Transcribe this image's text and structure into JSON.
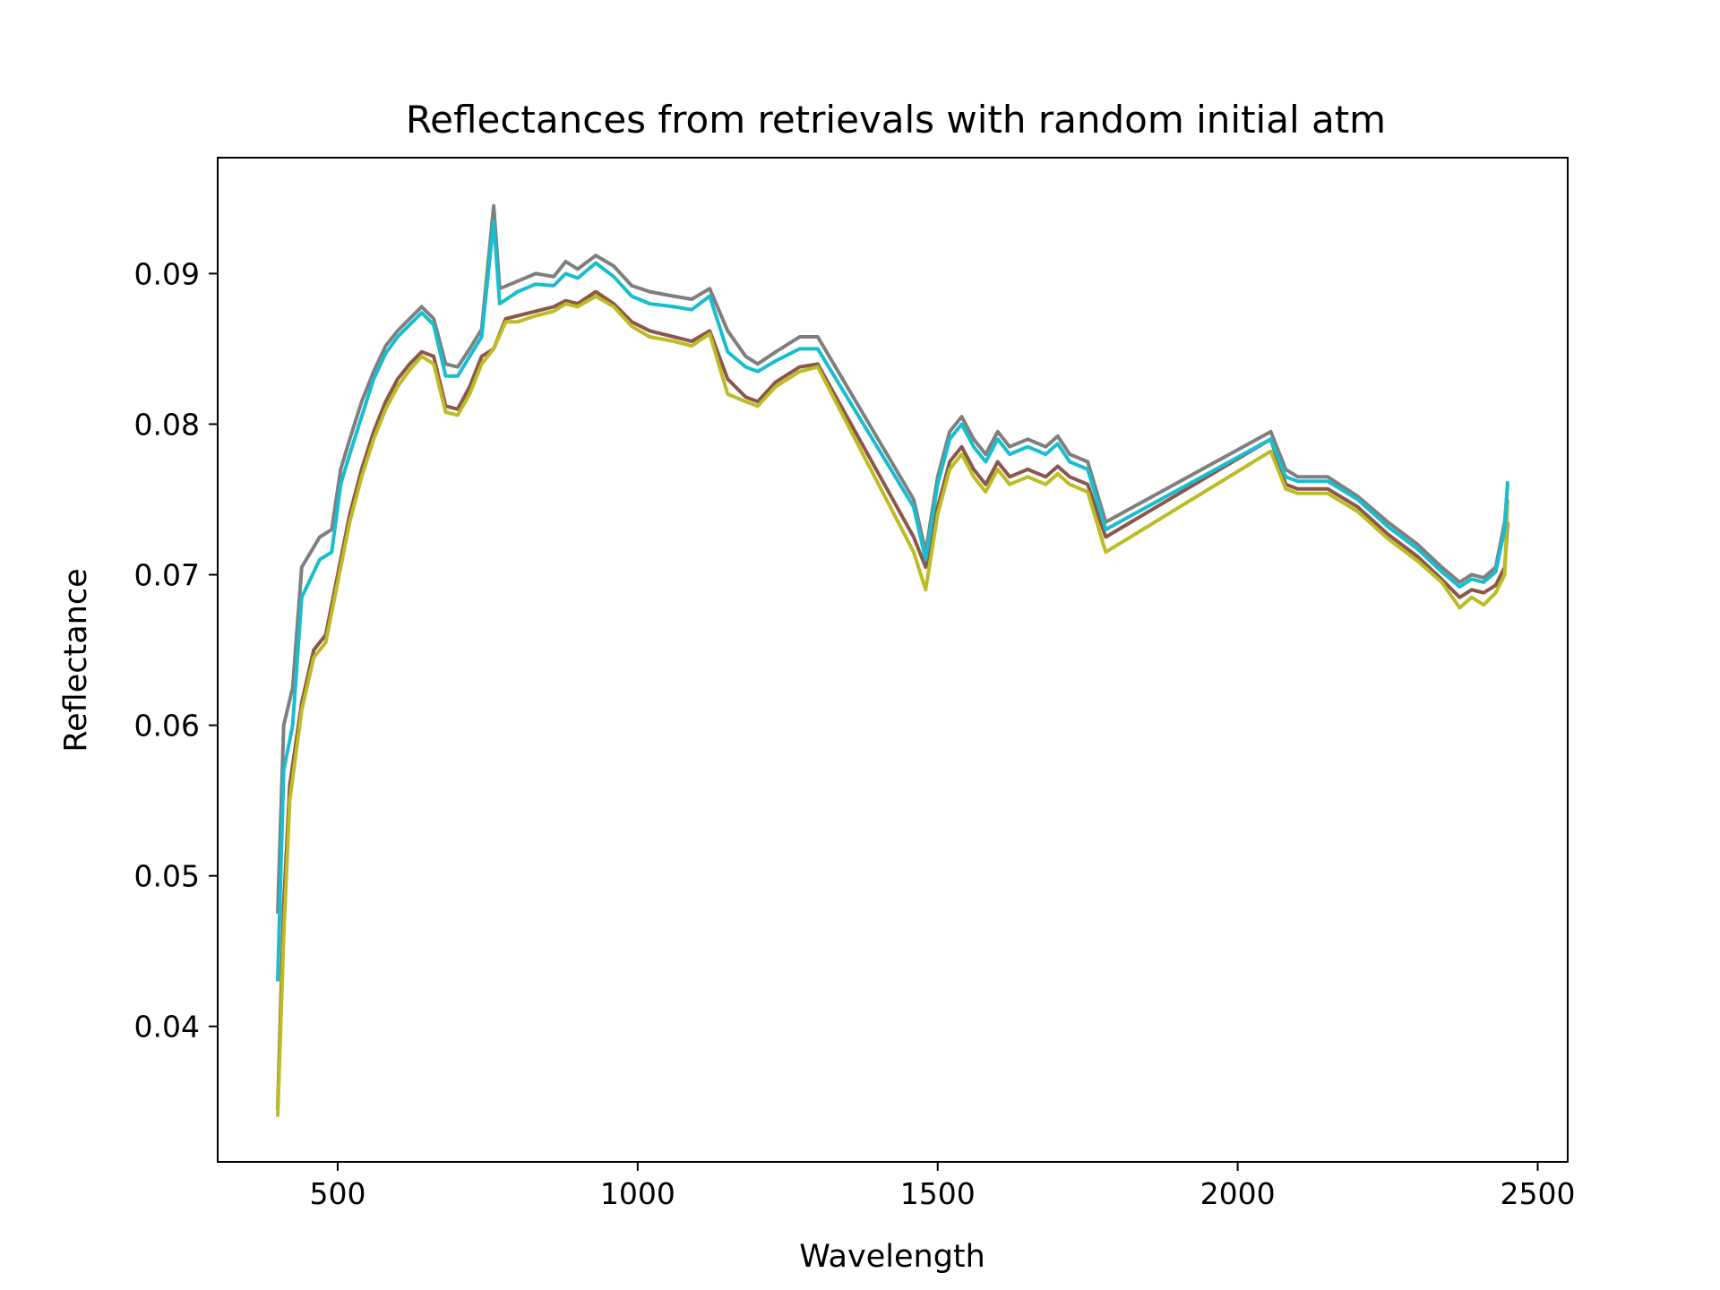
{
  "chart_data": {
    "type": "line",
    "title": "Reflectances from retrievals with random initial atm",
    "xlabel": "Wavelength",
    "ylabel": "Reflectance",
    "xlim": [
      300,
      2550
    ],
    "ylim": [
      0.031,
      0.0977
    ],
    "xticks": [
      500,
      1000,
      1500,
      2000,
      2500
    ],
    "yticks": [
      0.04,
      0.05,
      0.06,
      0.07,
      0.08,
      0.09
    ],
    "ytick_labels": [
      "0.04",
      "0.05",
      "0.06",
      "0.07",
      "0.08",
      "0.09"
    ],
    "grid": false,
    "legend": "none",
    "series": [
      {
        "color": "#7f7f7f",
        "points": [
          [
            400,
            0.0475
          ],
          [
            410,
            0.06
          ],
          [
            425,
            0.0625
          ],
          [
            440,
            0.0705
          ],
          [
            470,
            0.0725
          ],
          [
            490,
            0.073
          ],
          [
            505,
            0.077
          ],
          [
            520,
            0.079
          ],
          [
            540,
            0.0815
          ],
          [
            560,
            0.0835
          ],
          [
            580,
            0.0852
          ],
          [
            600,
            0.0862
          ],
          [
            620,
            0.087
          ],
          [
            640,
            0.0878
          ],
          [
            660,
            0.087
          ],
          [
            680,
            0.084
          ],
          [
            700,
            0.0838
          ],
          [
            720,
            0.085
          ],
          [
            740,
            0.0863
          ],
          [
            760,
            0.0945
          ],
          [
            770,
            0.089
          ],
          [
            800,
            0.0895
          ],
          [
            830,
            0.09
          ],
          [
            860,
            0.0898
          ],
          [
            880,
            0.0908
          ],
          [
            900,
            0.0903
          ],
          [
            930,
            0.0912
          ],
          [
            960,
            0.0905
          ],
          [
            990,
            0.0892
          ],
          [
            1020,
            0.0888
          ],
          [
            1060,
            0.0885
          ],
          [
            1090,
            0.0883
          ],
          [
            1120,
            0.089
          ],
          [
            1150,
            0.0862
          ],
          [
            1180,
            0.0845
          ],
          [
            1200,
            0.084
          ],
          [
            1230,
            0.0848
          ],
          [
            1270,
            0.0858
          ],
          [
            1300,
            0.0858
          ],
          [
            1460,
            0.075
          ],
          [
            1480,
            0.0715
          ],
          [
            1500,
            0.0765
          ],
          [
            1520,
            0.0795
          ],
          [
            1540,
            0.0805
          ],
          [
            1560,
            0.079
          ],
          [
            1580,
            0.078
          ],
          [
            1600,
            0.0795
          ],
          [
            1620,
            0.0785
          ],
          [
            1650,
            0.079
          ],
          [
            1680,
            0.0785
          ],
          [
            1700,
            0.0792
          ],
          [
            1720,
            0.078
          ],
          [
            1750,
            0.0775
          ],
          [
            1780,
            0.0735
          ],
          [
            2055,
            0.0795
          ],
          [
            2080,
            0.077
          ],
          [
            2100,
            0.0765
          ],
          [
            2150,
            0.0765
          ],
          [
            2200,
            0.0752
          ],
          [
            2250,
            0.0735
          ],
          [
            2300,
            0.072
          ],
          [
            2340,
            0.0705
          ],
          [
            2370,
            0.0695
          ],
          [
            2390,
            0.07
          ],
          [
            2410,
            0.0698
          ],
          [
            2430,
            0.0705
          ],
          [
            2445,
            0.0735
          ],
          [
            2450,
            0.076
          ]
        ]
      },
      {
        "color": "#8c564b",
        "points": [
          [
            400,
            0.0345
          ],
          [
            410,
            0.048
          ],
          [
            420,
            0.056
          ],
          [
            440,
            0.0615
          ],
          [
            460,
            0.065
          ],
          [
            480,
            0.066
          ],
          [
            500,
            0.07
          ],
          [
            520,
            0.074
          ],
          [
            540,
            0.077
          ],
          [
            560,
            0.0795
          ],
          [
            580,
            0.0815
          ],
          [
            600,
            0.083
          ],
          [
            620,
            0.084
          ],
          [
            640,
            0.0848
          ],
          [
            660,
            0.0845
          ],
          [
            680,
            0.0812
          ],
          [
            700,
            0.081
          ],
          [
            720,
            0.0825
          ],
          [
            740,
            0.0845
          ],
          [
            760,
            0.085
          ],
          [
            780,
            0.087
          ],
          [
            800,
            0.0872
          ],
          [
            830,
            0.0875
          ],
          [
            860,
            0.0878
          ],
          [
            880,
            0.0882
          ],
          [
            900,
            0.088
          ],
          [
            930,
            0.0888
          ],
          [
            960,
            0.088
          ],
          [
            990,
            0.0868
          ],
          [
            1020,
            0.0862
          ],
          [
            1060,
            0.0858
          ],
          [
            1090,
            0.0855
          ],
          [
            1120,
            0.0862
          ],
          [
            1150,
            0.083
          ],
          [
            1180,
            0.0818
          ],
          [
            1200,
            0.0815
          ],
          [
            1230,
            0.0828
          ],
          [
            1270,
            0.0838
          ],
          [
            1300,
            0.084
          ],
          [
            1460,
            0.0725
          ],
          [
            1480,
            0.0705
          ],
          [
            1500,
            0.0745
          ],
          [
            1520,
            0.0775
          ],
          [
            1540,
            0.0785
          ],
          [
            1560,
            0.077
          ],
          [
            1580,
            0.076
          ],
          [
            1600,
            0.0775
          ],
          [
            1620,
            0.0765
          ],
          [
            1650,
            0.077
          ],
          [
            1680,
            0.0765
          ],
          [
            1700,
            0.0772
          ],
          [
            1720,
            0.0765
          ],
          [
            1750,
            0.076
          ],
          [
            1780,
            0.0725
          ],
          [
            2055,
            0.079
          ],
          [
            2080,
            0.076
          ],
          [
            2100,
            0.0757
          ],
          [
            2150,
            0.0757
          ],
          [
            2200,
            0.0745
          ],
          [
            2250,
            0.0727
          ],
          [
            2300,
            0.0712
          ],
          [
            2340,
            0.0697
          ],
          [
            2370,
            0.0685
          ],
          [
            2390,
            0.069
          ],
          [
            2410,
            0.0688
          ],
          [
            2430,
            0.0693
          ],
          [
            2445,
            0.0705
          ],
          [
            2450,
            0.0735
          ]
        ]
      },
      {
        "color": "#bcbd22",
        "points": [
          [
            400,
            0.034
          ],
          [
            410,
            0.046
          ],
          [
            420,
            0.055
          ],
          [
            440,
            0.061
          ],
          [
            460,
            0.0645
          ],
          [
            480,
            0.0655
          ],
          [
            500,
            0.0695
          ],
          [
            520,
            0.0735
          ],
          [
            540,
            0.0765
          ],
          [
            560,
            0.079
          ],
          [
            580,
            0.081
          ],
          [
            600,
            0.0825
          ],
          [
            620,
            0.0836
          ],
          [
            640,
            0.0845
          ],
          [
            660,
            0.084
          ],
          [
            680,
            0.0808
          ],
          [
            700,
            0.0806
          ],
          [
            720,
            0.082
          ],
          [
            740,
            0.084
          ],
          [
            760,
            0.085
          ],
          [
            780,
            0.0868
          ],
          [
            800,
            0.0868
          ],
          [
            830,
            0.0872
          ],
          [
            860,
            0.0875
          ],
          [
            880,
            0.088
          ],
          [
            900,
            0.0878
          ],
          [
            930,
            0.0885
          ],
          [
            960,
            0.0878
          ],
          [
            990,
            0.0865
          ],
          [
            1020,
            0.0858
          ],
          [
            1060,
            0.0855
          ],
          [
            1090,
            0.0852
          ],
          [
            1120,
            0.086
          ],
          [
            1150,
            0.082
          ],
          [
            1180,
            0.0815
          ],
          [
            1200,
            0.0812
          ],
          [
            1230,
            0.0825
          ],
          [
            1270,
            0.0835
          ],
          [
            1300,
            0.0838
          ],
          [
            1460,
            0.0715
          ],
          [
            1480,
            0.069
          ],
          [
            1500,
            0.074
          ],
          [
            1520,
            0.077
          ],
          [
            1540,
            0.078
          ],
          [
            1560,
            0.0765
          ],
          [
            1580,
            0.0755
          ],
          [
            1600,
            0.077
          ],
          [
            1620,
            0.076
          ],
          [
            1650,
            0.0765
          ],
          [
            1680,
            0.076
          ],
          [
            1700,
            0.0767
          ],
          [
            1720,
            0.076
          ],
          [
            1750,
            0.0755
          ],
          [
            1780,
            0.0715
          ],
          [
            2055,
            0.0782
          ],
          [
            2080,
            0.0757
          ],
          [
            2100,
            0.0754
          ],
          [
            2150,
            0.0754
          ],
          [
            2200,
            0.0742
          ],
          [
            2250,
            0.0724
          ],
          [
            2300,
            0.0709
          ],
          [
            2340,
            0.0695
          ],
          [
            2370,
            0.0678
          ],
          [
            2390,
            0.0685
          ],
          [
            2410,
            0.068
          ],
          [
            2430,
            0.0688
          ],
          [
            2445,
            0.07
          ],
          [
            2450,
            0.075
          ]
        ]
      },
      {
        "color": "#17becf",
        "points": [
          [
            400,
            0.043
          ],
          [
            410,
            0.057
          ],
          [
            425,
            0.06
          ],
          [
            440,
            0.0685
          ],
          [
            470,
            0.071
          ],
          [
            490,
            0.0715
          ],
          [
            505,
            0.076
          ],
          [
            520,
            0.078
          ],
          [
            540,
            0.0805
          ],
          [
            560,
            0.083
          ],
          [
            580,
            0.0847
          ],
          [
            600,
            0.0858
          ],
          [
            620,
            0.0866
          ],
          [
            640,
            0.0874
          ],
          [
            660,
            0.0866
          ],
          [
            680,
            0.0832
          ],
          [
            700,
            0.0832
          ],
          [
            720,
            0.0845
          ],
          [
            740,
            0.0858
          ],
          [
            760,
            0.0935
          ],
          [
            770,
            0.088
          ],
          [
            800,
            0.0888
          ],
          [
            830,
            0.0893
          ],
          [
            860,
            0.0892
          ],
          [
            880,
            0.09
          ],
          [
            900,
            0.0897
          ],
          [
            930,
            0.0907
          ],
          [
            960,
            0.0898
          ],
          [
            990,
            0.0885
          ],
          [
            1020,
            0.088
          ],
          [
            1060,
            0.0878
          ],
          [
            1090,
            0.0876
          ],
          [
            1120,
            0.0885
          ],
          [
            1150,
            0.0848
          ],
          [
            1180,
            0.0838
          ],
          [
            1200,
            0.0835
          ],
          [
            1230,
            0.0842
          ],
          [
            1270,
            0.085
          ],
          [
            1300,
            0.085
          ],
          [
            1460,
            0.0745
          ],
          [
            1480,
            0.071
          ],
          [
            1500,
            0.076
          ],
          [
            1520,
            0.079
          ],
          [
            1540,
            0.08
          ],
          [
            1560,
            0.0785
          ],
          [
            1580,
            0.0775
          ],
          [
            1600,
            0.079
          ],
          [
            1620,
            0.078
          ],
          [
            1650,
            0.0785
          ],
          [
            1680,
            0.078
          ],
          [
            1700,
            0.0787
          ],
          [
            1720,
            0.0775
          ],
          [
            1750,
            0.077
          ],
          [
            1780,
            0.073
          ],
          [
            2055,
            0.079
          ],
          [
            2080,
            0.0765
          ],
          [
            2100,
            0.0762
          ],
          [
            2150,
            0.0762
          ],
          [
            2200,
            0.075
          ],
          [
            2250,
            0.0732
          ],
          [
            2300,
            0.0717
          ],
          [
            2340,
            0.0702
          ],
          [
            2370,
            0.0692
          ],
          [
            2390,
            0.0697
          ],
          [
            2410,
            0.0695
          ],
          [
            2430,
            0.0702
          ],
          [
            2445,
            0.073
          ],
          [
            2450,
            0.0762
          ]
        ]
      }
    ]
  }
}
